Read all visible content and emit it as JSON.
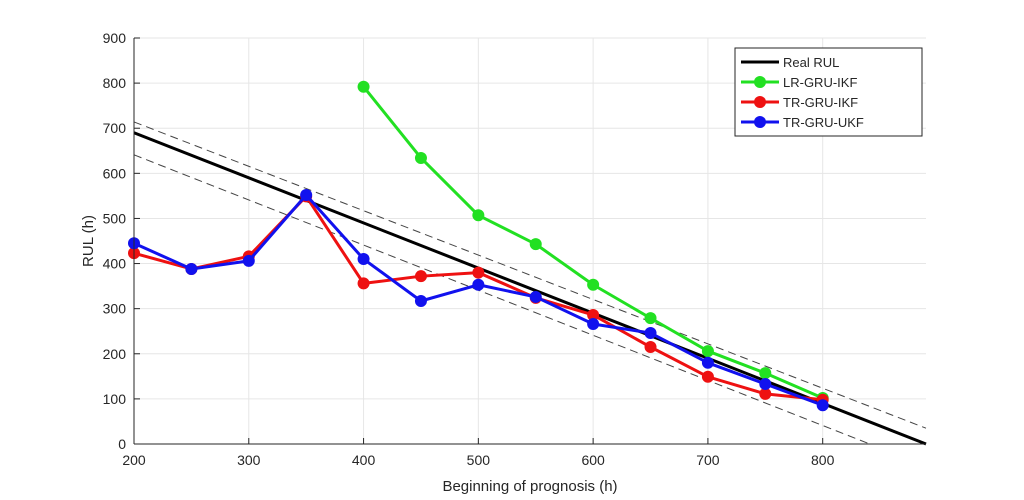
{
  "chart_data": {
    "type": "line",
    "title": "",
    "xlabel": "Beginning of prognosis (h)",
    "ylabel": "RUL (h)",
    "xlim": [
      200,
      890
    ],
    "ylim": [
      0,
      900
    ],
    "xticks": [
      200,
      300,
      400,
      500,
      600,
      700,
      800
    ],
    "yticks": [
      0,
      100,
      200,
      300,
      400,
      500,
      600,
      700,
      800,
      900
    ],
    "grid": true,
    "legend_position": "top-right",
    "reference_lines": [
      {
        "name": "Real RUL",
        "x": [
          200,
          890
        ],
        "y": [
          690,
          0
        ],
        "color": "#000000",
        "style": "solid"
      },
      {
        "x": [
          200,
          890
        ],
        "y": [
          714,
          35
        ],
        "color": "#444444",
        "style": "dashed"
      },
      {
        "x": [
          200,
          841
        ],
        "y": [
          641,
          0
        ],
        "color": "#444444",
        "style": "dashed"
      }
    ],
    "series": [
      {
        "name": "LR-GRU-IKF",
        "color": "#22e022",
        "x": [
          400,
          450,
          500,
          550,
          600,
          650,
          700,
          750,
          800
        ],
        "y": [
          792,
          634,
          507,
          443,
          353,
          279,
          206,
          157,
          102
        ]
      },
      {
        "name": "TR-GRU-IKF",
        "color": "#ee1111",
        "x": [
          200,
          250,
          300,
          350,
          400,
          450,
          500,
          550,
          600,
          650,
          700,
          750,
          800
        ],
        "y": [
          423,
          388,
          416,
          549,
          356,
          372,
          380,
          324,
          286,
          215,
          149,
          111,
          98
        ]
      },
      {
        "name": "TR-GRU-UKF",
        "color": "#1111ee",
        "x": [
          200,
          250,
          300,
          350,
          400,
          450,
          500,
          550,
          600,
          650,
          700,
          750,
          800
        ],
        "y": [
          445,
          388,
          406,
          552,
          410,
          317,
          353,
          326,
          266,
          246,
          180,
          133,
          86
        ]
      }
    ]
  }
}
